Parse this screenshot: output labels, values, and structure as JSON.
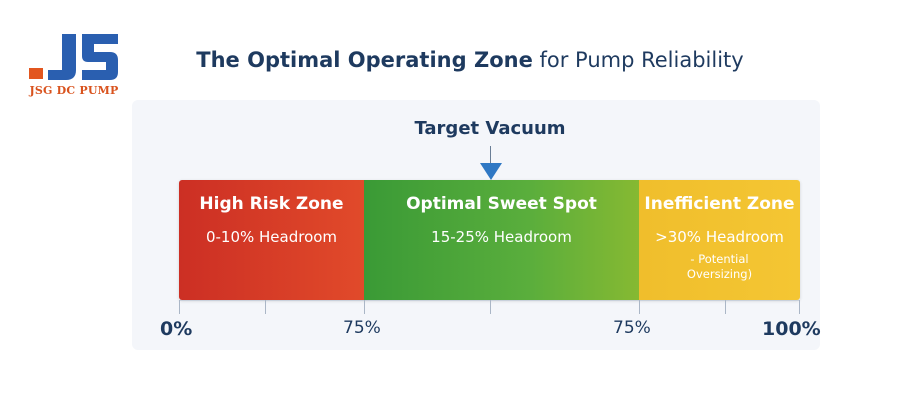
{
  "logo": {
    "text": "JSG DC PUMP",
    "mark_colors": [
      "#e2561f",
      "#2a5fb0"
    ]
  },
  "title": {
    "bold_part": "The Optimal Operating Zone",
    "rest": " for Pump Reliability"
  },
  "target": {
    "label": "Target Vacuum",
    "arrow_color": "#2f78c4"
  },
  "zones": [
    {
      "title": "High Risk Zone",
      "subtitle": "0-10% Headroom",
      "color": "#d63a27"
    },
    {
      "title": "Optimal Sweet Spot",
      "subtitle": "15-25% Headroom",
      "color": "#4ea63a"
    },
    {
      "title": "Inefficient Zone",
      "subtitle": ">30% Headroom",
      "note_line1": "- Potential",
      "note_line2": "Oversizing)",
      "color": "#f2c12f"
    }
  ],
  "axis": {
    "labels": [
      "0%",
      "75%",
      "75%",
      "100%"
    ]
  },
  "colors": {
    "title": "#1e3a5f"
  }
}
